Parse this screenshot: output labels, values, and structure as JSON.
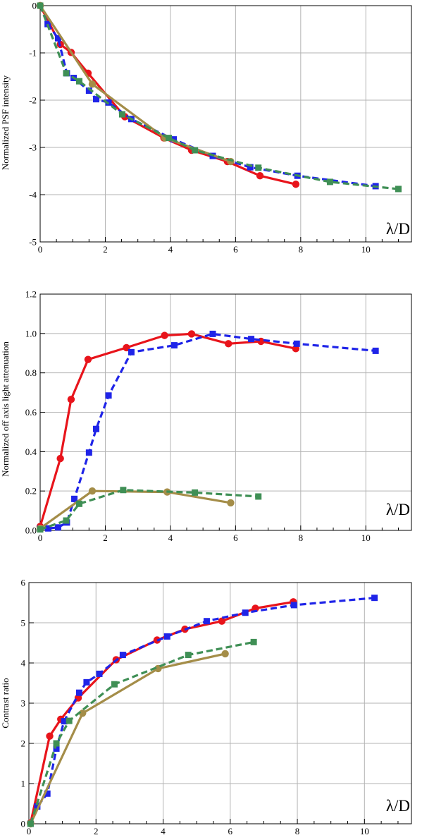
{
  "chart_data": [
    {
      "type": "line",
      "ylabel": "Normalized PSF intensity",
      "corner_label": "λ/D",
      "xlim": [
        0,
        11.4
      ],
      "ylim": [
        -5,
        0
      ],
      "xticks": [
        0,
        2,
        4,
        6,
        8,
        10
      ],
      "yticks": [
        0,
        -1,
        -2,
        -3,
        -4,
        -5
      ],
      "grid": true,
      "series": [
        {
          "color": "#e8141b",
          "dash": "solid",
          "marker": "circle",
          "points": [
            [
              0.0,
              0.0
            ],
            [
              0.62,
              -0.82
            ],
            [
              0.95,
              -0.99
            ],
            [
              1.47,
              -1.43
            ],
            [
              2.6,
              -2.35
            ],
            [
              3.8,
              -2.8
            ],
            [
              4.65,
              -3.06
            ],
            [
              5.75,
              -3.3
            ],
            [
              6.75,
              -3.6
            ],
            [
              7.85,
              -3.78
            ]
          ]
        },
        {
          "color": "#1f24e8",
          "dash": "dash",
          "marker": "square",
          "points": [
            [
              0.0,
              0.0
            ],
            [
              0.23,
              -0.39
            ],
            [
              0.55,
              -0.69
            ],
            [
              0.82,
              -1.43
            ],
            [
              1.03,
              -1.53
            ],
            [
              1.5,
              -1.8
            ],
            [
              1.72,
              -1.98
            ],
            [
              2.1,
              -2.05
            ],
            [
              2.8,
              -2.4
            ],
            [
              4.1,
              -2.83
            ],
            [
              5.3,
              -3.18
            ],
            [
              6.45,
              -3.42
            ],
            [
              7.9,
              -3.6
            ],
            [
              10.3,
              -3.82
            ]
          ]
        },
        {
          "color": "#a48d48",
          "dash": "solid",
          "marker": "circle",
          "points": [
            [
              0.0,
              0.0
            ],
            [
              1.6,
              -1.66
            ],
            [
              3.83,
              -2.8
            ],
            [
              5.85,
              -3.3
            ]
          ]
        },
        {
          "color": "#3f8f55",
          "dash": "dash",
          "marker": "square",
          "points": [
            [
              0.0,
              0.0
            ],
            [
              0.8,
              -1.43
            ],
            [
              1.2,
              -1.6
            ],
            [
              2.52,
              -2.3
            ],
            [
              3.95,
              -2.8
            ],
            [
              4.75,
              -3.06
            ],
            [
              6.7,
              -3.43
            ],
            [
              8.9,
              -3.73
            ],
            [
              11.0,
              -3.88
            ]
          ]
        }
      ]
    },
    {
      "type": "line",
      "ylabel": "Normalized off axis light attenuation",
      "corner_label": "λ/D",
      "xlim": [
        0,
        11.4
      ],
      "ylim": [
        0,
        1.2
      ],
      "xticks": [
        0,
        2,
        4,
        6,
        8,
        10
      ],
      "yticks": [
        0.0,
        0.2,
        0.4,
        0.6,
        0.8,
        1.0,
        1.2
      ],
      "grid": true,
      "series": [
        {
          "color": "#e8141b",
          "dash": "solid",
          "marker": "circle",
          "points": [
            [
              0.0,
              0.02
            ],
            [
              0.62,
              0.365
            ],
            [
              0.95,
              0.665
            ],
            [
              1.47,
              0.868
            ],
            [
              2.65,
              0.928
            ],
            [
              3.82,
              0.99
            ],
            [
              4.65,
              0.998
            ],
            [
              5.78,
              0.948
            ],
            [
              6.78,
              0.96
            ],
            [
              7.85,
              0.923
            ]
          ]
        },
        {
          "color": "#1f24e8",
          "dash": "dash",
          "marker": "square",
          "points": [
            [
              0.0,
              0.01
            ],
            [
              0.25,
              0.01
            ],
            [
              0.55,
              0.015
            ],
            [
              0.82,
              0.04
            ],
            [
              1.05,
              0.16
            ],
            [
              1.5,
              0.395
            ],
            [
              1.72,
              0.515
            ],
            [
              2.1,
              0.685
            ],
            [
              2.8,
              0.905
            ],
            [
              4.12,
              0.94
            ],
            [
              5.3,
              0.998
            ],
            [
              6.48,
              0.972
            ],
            [
              7.88,
              0.948
            ],
            [
              10.3,
              0.912
            ]
          ]
        },
        {
          "color": "#a48d48",
          "dash": "solid",
          "marker": "circle",
          "points": [
            [
              0.0,
              0.01
            ],
            [
              1.6,
              0.2
            ],
            [
              3.9,
              0.195
            ],
            [
              5.85,
              0.14
            ]
          ]
        },
        {
          "color": "#3f8f55",
          "dash": "dash",
          "marker": "square",
          "points": [
            [
              0.0,
              0.005
            ],
            [
              0.8,
              0.05
            ],
            [
              1.2,
              0.135
            ],
            [
              2.55,
              0.205
            ],
            [
              4.75,
              0.192
            ],
            [
              6.7,
              0.172
            ]
          ]
        }
      ]
    },
    {
      "type": "line",
      "ylabel": "Contrast ratio",
      "corner_label": "λ/D",
      "xlim": [
        0,
        11.4
      ],
      "ylim": [
        0,
        6
      ],
      "xticks": [
        0,
        2,
        4,
        6,
        8,
        10
      ],
      "yticks": [
        0,
        1,
        2,
        3,
        4,
        5,
        6
      ],
      "grid": true,
      "series": [
        {
          "color": "#e8141b",
          "dash": "solid",
          "marker": "circle",
          "points": [
            [
              0.05,
              0.02
            ],
            [
              0.62,
              2.18
            ],
            [
              0.95,
              2.6
            ],
            [
              1.47,
              3.13
            ],
            [
              2.6,
              4.08
            ],
            [
              3.82,
              4.57
            ],
            [
              4.65,
              4.84
            ],
            [
              5.75,
              5.04
            ],
            [
              6.75,
              5.36
            ],
            [
              7.88,
              5.52
            ]
          ]
        },
        {
          "color": "#1f24e8",
          "dash": "dash",
          "marker": "square",
          "points": [
            [
              0.05,
              0.0
            ],
            [
              0.25,
              0.43
            ],
            [
              0.55,
              0.75
            ],
            [
              0.82,
              1.87
            ],
            [
              1.05,
              2.55
            ],
            [
              1.5,
              3.26
            ],
            [
              1.72,
              3.52
            ],
            [
              2.1,
              3.73
            ],
            [
              2.8,
              4.2
            ],
            [
              4.12,
              4.66
            ],
            [
              5.3,
              5.04
            ],
            [
              6.45,
              5.25
            ],
            [
              7.9,
              5.44
            ],
            [
              10.3,
              5.62
            ]
          ]
        },
        {
          "color": "#a48d48",
          "dash": "solid",
          "marker": "circle",
          "points": [
            [
              0.05,
              0.0
            ],
            [
              1.6,
              2.75
            ],
            [
              3.85,
              3.86
            ],
            [
              5.85,
              4.23
            ]
          ]
        },
        {
          "color": "#3f8f55",
          "dash": "dash",
          "marker": "square",
          "points": [
            [
              0.05,
              0.0
            ],
            [
              0.82,
              2.0
            ],
            [
              1.2,
              2.56
            ],
            [
              2.55,
              3.47
            ],
            [
              4.75,
              4.2
            ],
            [
              6.7,
              4.52
            ]
          ]
        }
      ]
    }
  ]
}
